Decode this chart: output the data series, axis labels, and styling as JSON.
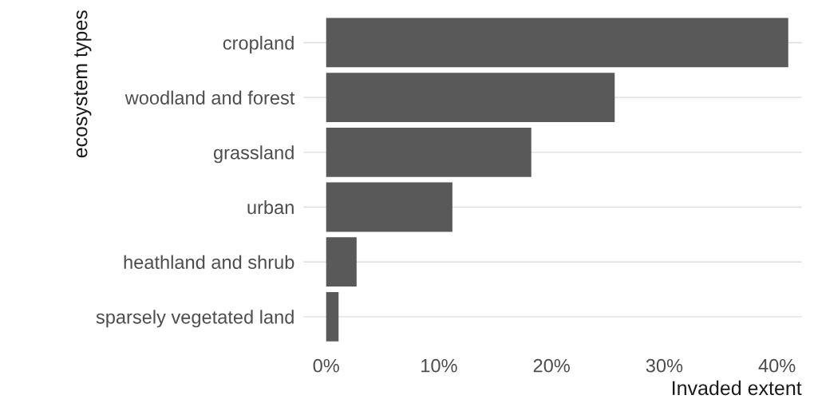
{
  "chart_data": {
    "type": "bar",
    "orientation": "horizontal",
    "xlabel": "Invaded extent",
    "ylabel": "ecosystem types",
    "categories": [
      "cropland",
      "woodland and forest",
      "grassland",
      "urban",
      "heathland and shrub",
      "sparsely vegetated land"
    ],
    "values": [
      41.0,
      25.6,
      18.2,
      11.2,
      2.7,
      1.1
    ],
    "color": "#595959",
    "xlim": [
      -2,
      42.2
    ],
    "xticks": [
      {
        "value": 0,
        "label": "0%"
      },
      {
        "value": 10,
        "label": "10%"
      },
      {
        "value": 20,
        "label": "20%"
      },
      {
        "value": 30,
        "label": "30%"
      },
      {
        "value": 40,
        "label": "40%"
      }
    ],
    "grid": "y"
  }
}
